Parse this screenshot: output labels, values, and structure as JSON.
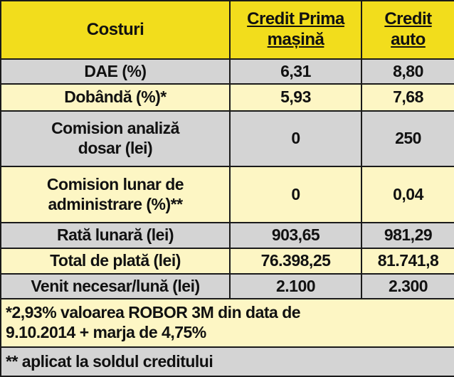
{
  "table": {
    "header": [
      "Costuri",
      "Credit Prima\nmașină",
      "Credit\nauto"
    ],
    "rows": [
      [
        "DAE (%)",
        "6,31",
        "8,80"
      ],
      [
        "Dobândă (%)*",
        "5,93",
        "7,68"
      ],
      [
        "Comision analiză\ndosar (lei)",
        "0",
        "250"
      ],
      [
        "Comision lunar de\nadministrare (%)**",
        "0",
        "0,04"
      ],
      [
        "Rată lunară (lei)",
        "903,65",
        "981,29"
      ],
      [
        "Total de plată (lei)",
        "76.398,25",
        "81.741,8"
      ],
      [
        "Venit necesar/lună (lei)",
        "2.100",
        "2.300"
      ]
    ],
    "footnotes": [
      "*2,93% valoarea ROBOR 3M din data de\n9.10.2014 + marja de 4,75%",
      "** aplicat la soldul creditului"
    ]
  }
}
